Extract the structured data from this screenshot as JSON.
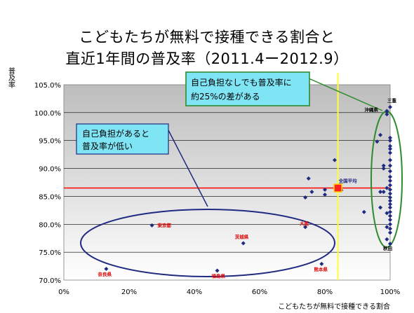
{
  "title": {
    "line1": "こどもたちが無料で接種できる割合と",
    "line2": "直近1年間の普及率（2011.4ー2012.9）"
  },
  "chart_data": {
    "type": "scatter",
    "xlabel": "こどもたちが無料で接種できる割合",
    "ylabel": "普及率",
    "xlim": [
      0,
      1.0
    ],
    "ylim": [
      0.7,
      1.05
    ],
    "x_ticks": [
      "0%",
      "20%",
      "40%",
      "60%",
      "80%",
      "100%"
    ],
    "y_ticks": [
      "70.0%",
      "75.0%",
      "80.0%",
      "85.0%",
      "90.0%",
      "95.0%",
      "100.0%",
      "105.0%"
    ],
    "grid": true,
    "point_color": "#1f2a80",
    "vertical_line_x": 0.84,
    "vertical_line_color": "#ffff33",
    "horizontal_line_y": 0.865,
    "horizontal_line_color": "#ff0000",
    "points": [
      [
        0.13,
        0.72
      ],
      [
        0.27,
        0.798
      ],
      [
        0.47,
        0.717
      ],
      [
        0.55,
        0.766
      ],
      [
        0.74,
        0.795
      ],
      [
        0.74,
        0.848
      ],
      [
        0.75,
        0.882
      ],
      [
        0.76,
        0.858
      ],
      [
        0.79,
        0.729
      ],
      [
        0.8,
        0.853
      ],
      [
        0.8,
        0.862
      ],
      [
        0.83,
        0.915
      ],
      [
        0.85,
        0.861
      ],
      [
        0.92,
        0.822
      ],
      [
        0.96,
        0.948
      ],
      [
        0.97,
        0.96
      ],
      [
        0.97,
        0.858
      ],
      [
        0.97,
        0.83
      ],
      [
        0.98,
        0.858
      ],
      [
        0.98,
        0.9
      ],
      [
        0.98,
        0.905
      ],
      [
        0.99,
        0.997
      ],
      [
        0.99,
        1.003
      ],
      [
        0.99,
        0.865
      ],
      [
        0.99,
        0.82
      ],
      [
        0.99,
        0.795
      ],
      [
        0.99,
        0.773
      ],
      [
        1.0,
        1.01
      ],
      [
        1.0,
        0.955
      ],
      [
        1.0,
        0.95
      ],
      [
        1.0,
        0.94
      ],
      [
        1.0,
        0.935
      ],
      [
        1.0,
        0.928
      ],
      [
        1.0,
        0.915
      ],
      [
        1.0,
        0.905
      ],
      [
        1.0,
        0.895
      ],
      [
        1.0,
        0.885
      ],
      [
        1.0,
        0.878
      ],
      [
        1.0,
        0.87
      ],
      [
        1.0,
        0.862
      ],
      [
        1.0,
        0.855
      ],
      [
        1.0,
        0.848
      ],
      [
        1.0,
        0.842
      ],
      [
        1.0,
        0.836
      ],
      [
        1.0,
        0.83
      ],
      [
        1.0,
        0.822
      ],
      [
        1.0,
        0.815
      ],
      [
        1.0,
        0.808
      ],
      [
        1.0,
        0.8
      ],
      [
        1.0,
        0.792
      ],
      [
        1.0,
        0.785
      ],
      [
        1.0,
        0.765
      ]
    ],
    "national_average": {
      "label": "全国平均",
      "x": 0.84,
      "y": 0.865,
      "color": "#ff0000"
    },
    "point_labels": [
      {
        "text": "奈良県",
        "x": 0.13,
        "y": 0.72
      },
      {
        "text": "東京都",
        "x": 0.27,
        "y": 0.798
      },
      {
        "text": "福島県",
        "x": 0.47,
        "y": 0.717
      },
      {
        "text": "茨城県",
        "x": 0.55,
        "y": 0.766
      },
      {
        "text": "大阪",
        "x": 0.74,
        "y": 0.795
      },
      {
        "text": "熊本県",
        "x": 0.79,
        "y": 0.729
      },
      {
        "text": "三重",
        "x": 1.0,
        "y": 1.01
      },
      {
        "text": "沖縄県",
        "x": 0.99,
        "y": 0.997
      },
      {
        "text": "秋田",
        "x": 1.0,
        "y": 0.765
      }
    ],
    "annotations": [
      {
        "line1": "自己負担があると",
        "line2": "普及率が低い"
      },
      {
        "line1": "自己負担なしでも普及率に",
        "line2": "約25%の差がある"
      }
    ]
  }
}
